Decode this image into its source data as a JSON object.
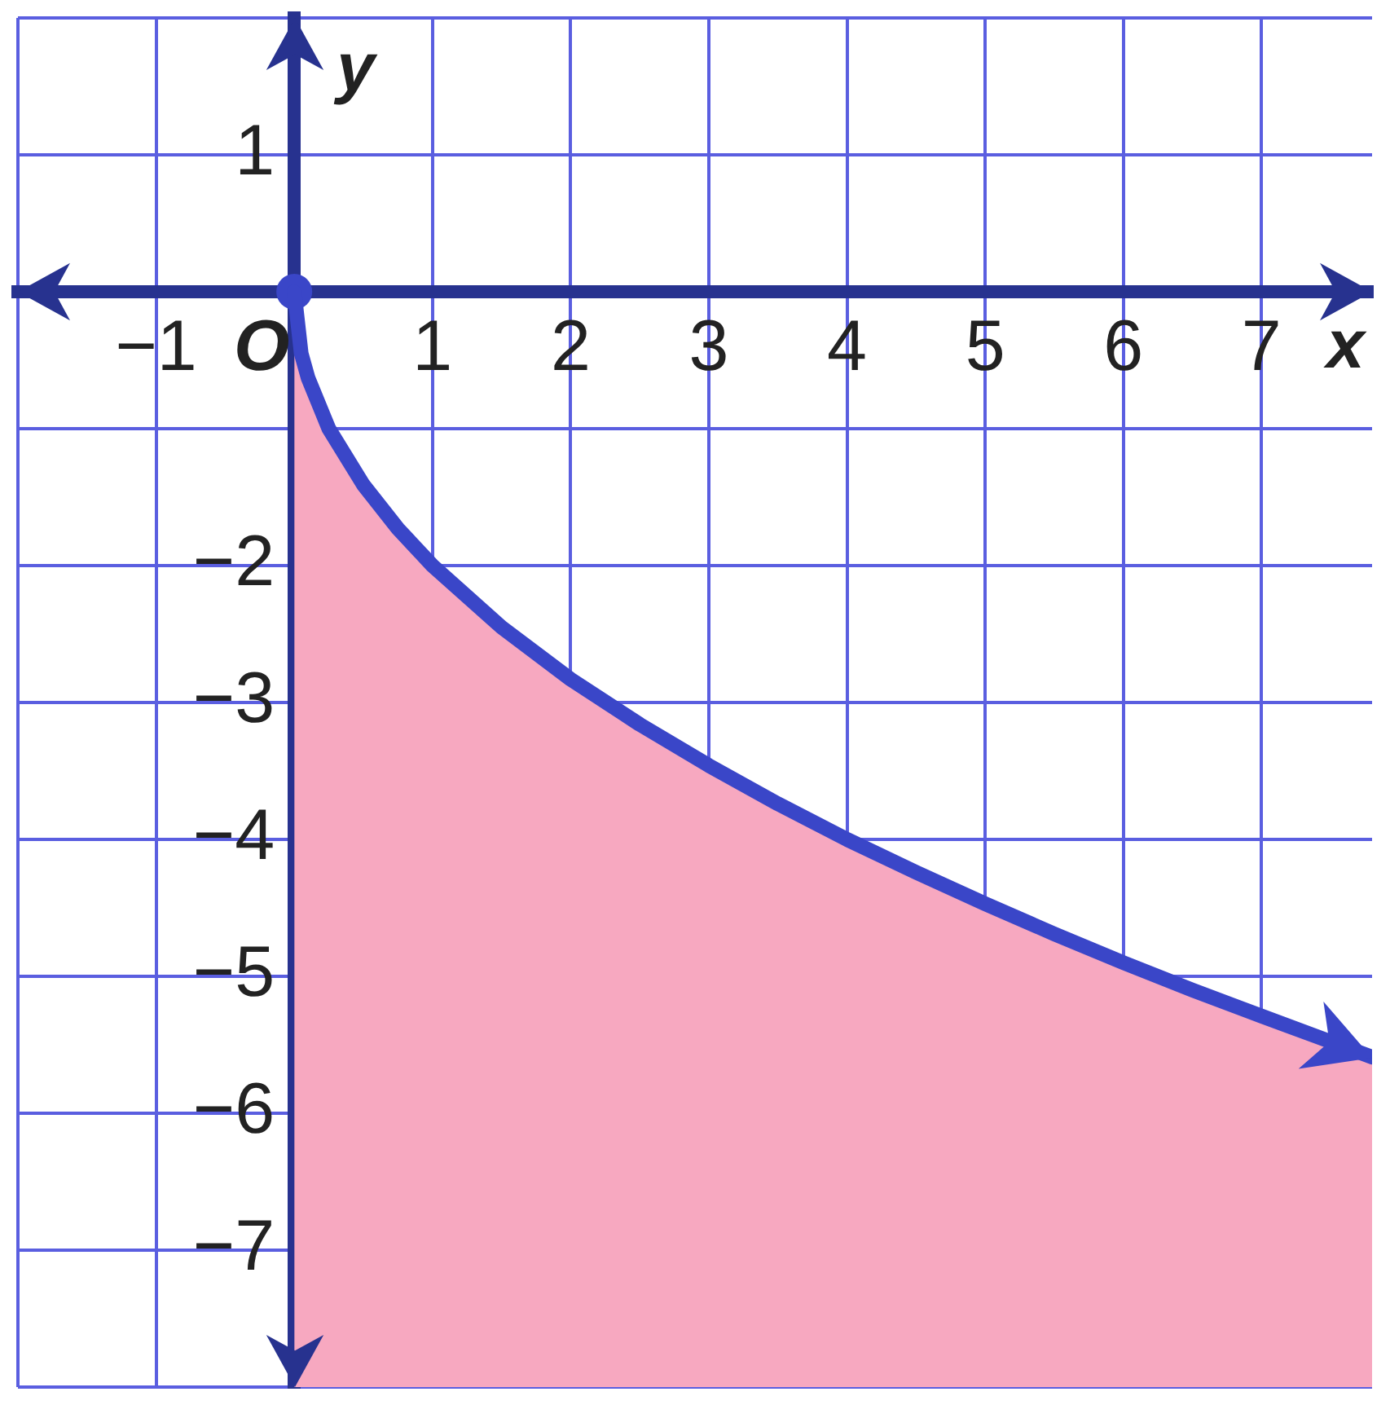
{
  "chart_data": {
    "type": "line",
    "xlabel": "x",
    "ylabel": "y",
    "x": [
      0,
      0.05,
      0.1,
      0.25,
      0.5,
      0.75,
      1,
      1.5,
      2,
      2.5,
      3,
      3.5,
      4,
      4.5,
      5,
      5.5,
      6,
      6.5,
      7,
      7.4,
      7.8
    ],
    "series": [
      {
        "color": "#3a46c8",
        "values": [
          0,
          -0.45,
          -0.63,
          -1,
          -1.41,
          -1.73,
          -2,
          -2.45,
          -2.83,
          -3.16,
          -3.46,
          -3.74,
          -4,
          -4.24,
          -4.47,
          -4.69,
          -4.9,
          -5.1,
          -5.29,
          -5.44,
          -5.59
        ],
        "lower": [
          -8,
          -8,
          -8,
          -8,
          -8,
          -8,
          -8,
          -8,
          -8,
          -8,
          -8,
          -8,
          -8,
          -8,
          -8,
          -8,
          -8,
          -8,
          -8,
          -8,
          -8
        ],
        "upper": [
          0,
          -0.45,
          -0.63,
          -1,
          -1.41,
          -1.73,
          -2,
          -2.45,
          -2.83,
          -3.16,
          -3.46,
          -3.74,
          -4,
          -4.24,
          -4.47,
          -4.69,
          -4.9,
          -5.1,
          -5.29,
          -5.44,
          -5.59
        ]
      },
      {
        "type": "scatter",
        "color": "#3a46c8",
        "x": [
          0
        ],
        "values": [
          0
        ],
        "marker": "circle"
      }
    ],
    "xlim": [
      -2,
      7.8
    ],
    "ylim": [
      -8,
      2
    ],
    "xticks": [
      {
        "value": -2,
        "label": null
      },
      {
        "value": -1,
        "label": "−1"
      },
      {
        "value": 0,
        "label": "O"
      },
      1,
      2,
      3,
      4,
      5,
      6,
      7
    ],
    "yticks": [
      {
        "value": -8,
        "label": null
      },
      {
        "value": -7,
        "label": "−7"
      },
      {
        "value": -6,
        "label": "−6"
      },
      {
        "value": -5,
        "label": "−5"
      },
      {
        "value": -4,
        "label": "−4"
      },
      {
        "value": -3,
        "label": "−3"
      },
      {
        "value": -2,
        "label": "−2"
      },
      {
        "value": -1,
        "label": null
      },
      {
        "value": 0,
        "label": null
      },
      1,
      {
        "value": 2,
        "label": null
      }
    ],
    "grid": true,
    "legend": false
  }
}
